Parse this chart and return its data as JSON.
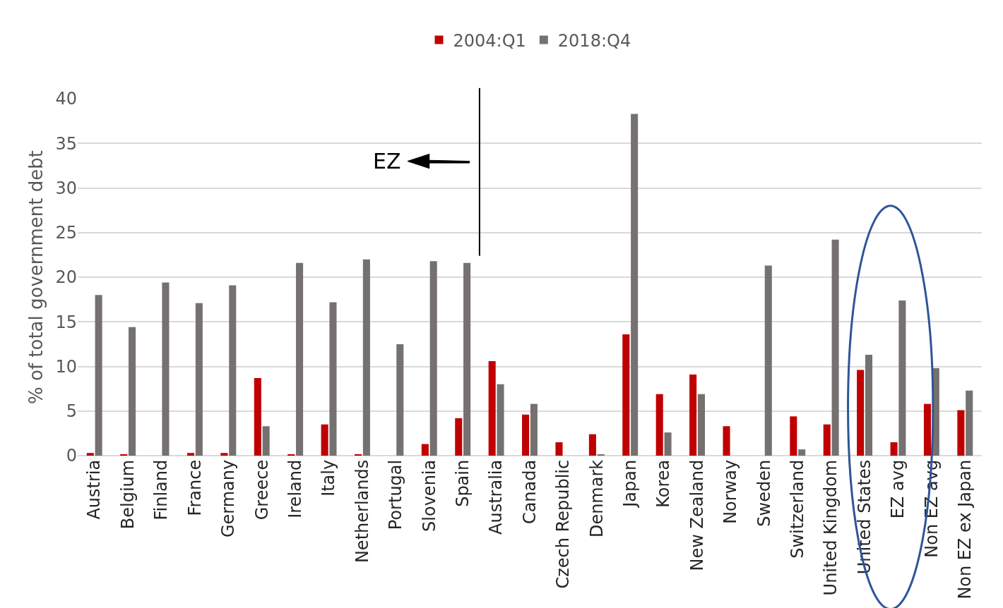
{
  "chart_data": {
    "type": "bar",
    "ylabel": "% of total government debt",
    "categories": [
      "Austria",
      "Belgium",
      "Finland",
      "France",
      "Germany",
      "Greece",
      "Ireland",
      "Italy",
      "Netherlands",
      "Portugal",
      "Slovenia",
      "Spain",
      "Australia",
      "Canada",
      "Czech Republic",
      "Denmark",
      "Japan",
      "Korea",
      "New Zealand",
      "Norway",
      "Sweden",
      "Switzerland",
      "United Kingdom",
      "United States",
      "EZ avg",
      "Non EZ avg",
      "Non EZ ex Japan"
    ],
    "series": [
      {
        "name": "2004:Q1",
        "color": "#c00000",
        "values": [
          0.3,
          0.1,
          0,
          0.3,
          0.3,
          8.7,
          0.1,
          3.5,
          0.1,
          0,
          1.3,
          4.2,
          10.6,
          4.6,
          1.5,
          2.4,
          13.6,
          6.9,
          9.1,
          3.3,
          0,
          4.4,
          3.5,
          9.6,
          1.5,
          5.8,
          5.1
        ]
      },
      {
        "name": "2018:Q4",
        "color": "#767171",
        "values": [
          18.0,
          14.4,
          19.4,
          17.1,
          19.1,
          3.3,
          21.6,
          17.2,
          22.0,
          12.5,
          21.8,
          21.6,
          8.0,
          5.8,
          0,
          0.1,
          38.3,
          2.6,
          6.9,
          0,
          21.3,
          0.7,
          24.2,
          11.3,
          17.4,
          9.8,
          7.3
        ]
      }
    ],
    "ylim": [
      0,
      40
    ],
    "yticks": [
      0,
      5,
      10,
      15,
      20,
      25,
      30,
      35,
      40
    ],
    "grid": "y",
    "legend": "top",
    "annotations": [
      "EZ"
    ]
  }
}
